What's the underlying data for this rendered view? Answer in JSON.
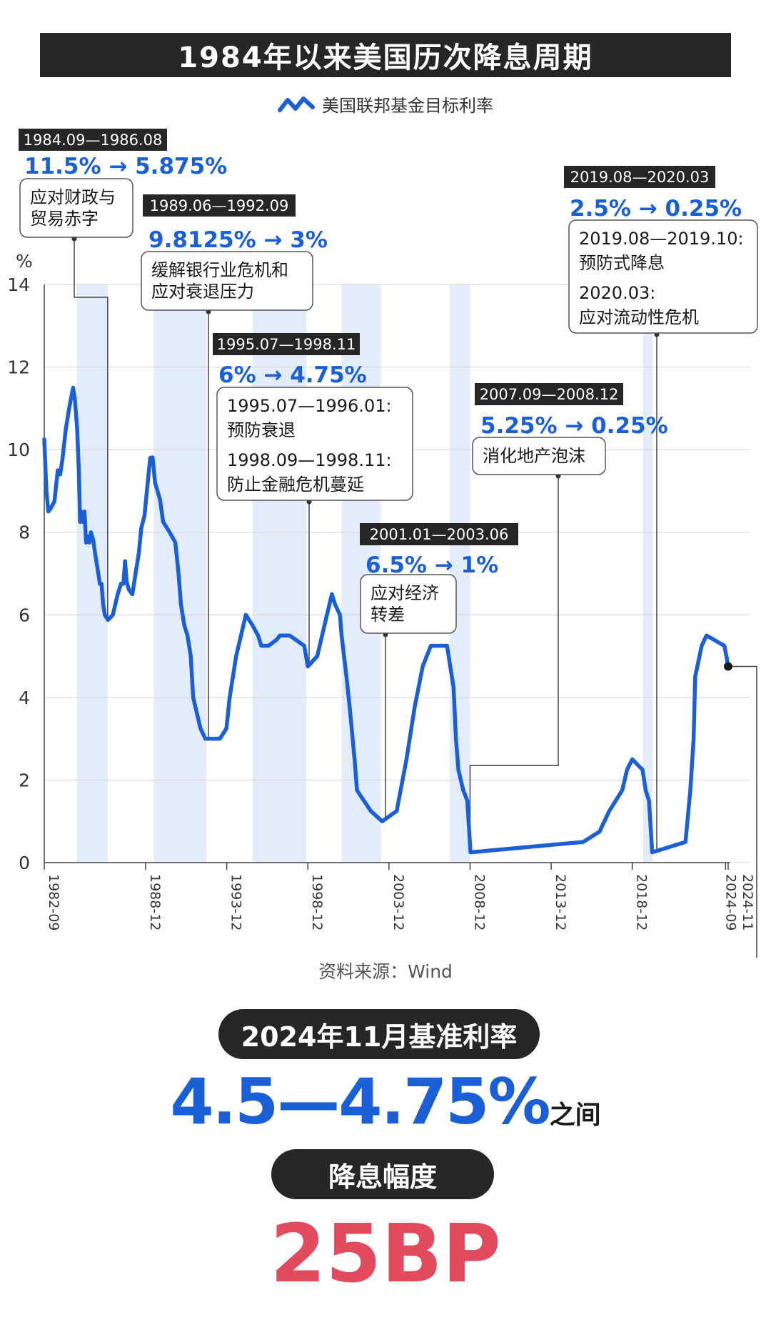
{
  "title": "1984年以来美国历次降息周期",
  "legend_label": "美国联邦基金目标利率",
  "colors": {
    "line": "#1b5fd6",
    "band": "#e3ecfa",
    "dark": "#262626",
    "accent_blue": "#1b5fd6",
    "accent_red": "#e14b5d"
  },
  "source": "资料来源：Wind",
  "bottom": {
    "rate_title": "2024年11月基准利率",
    "rate_value": "4.5—4.75%",
    "rate_suffix": "之间",
    "cut_title": "降息幅度",
    "cut_value": "25BP"
  },
  "chart_data": {
    "type": "line",
    "ylabel": "%",
    "ylim": [
      0,
      14
    ],
    "yticks": [
      0,
      2,
      4,
      6,
      8,
      10,
      12,
      14
    ],
    "xlim": [
      1982.67,
      2024.92
    ],
    "xticks": [
      {
        "label": "1982-09",
        "x": 1982.67
      },
      {
        "label": "1988-12",
        "x": 1988.92
      },
      {
        "label": "1993-12",
        "x": 1993.92
      },
      {
        "label": "1998-12",
        "x": 1998.92
      },
      {
        "label": "2003-12",
        "x": 2003.92
      },
      {
        "label": "2008-12",
        "x": 2008.92
      },
      {
        "label": "2013-12",
        "x": 2013.92
      },
      {
        "label": "2018-12",
        "x": 2018.92
      },
      {
        "label": "2024-09",
        "x": 2024.67
      },
      {
        "label": "2024-11",
        "x": 2024.83
      }
    ],
    "series": [
      {
        "name": "美国联邦基金目标利率",
        "points": [
          [
            1982.67,
            10.25
          ],
          [
            1982.8,
            9.0
          ],
          [
            1982.92,
            8.5
          ],
          [
            1983.1,
            8.6
          ],
          [
            1983.3,
            8.75
          ],
          [
            1983.5,
            9.5
          ],
          [
            1983.65,
            9.4
          ],
          [
            1983.8,
            9.8
          ],
          [
            1984.0,
            10.5
          ],
          [
            1984.2,
            11.0
          ],
          [
            1984.45,
            11.5
          ],
          [
            1984.55,
            11.25
          ],
          [
            1984.7,
            10.5
          ],
          [
            1984.8,
            9.5
          ],
          [
            1984.88,
            8.25
          ],
          [
            1984.95,
            8.5
          ],
          [
            1985.05,
            8.25
          ],
          [
            1985.15,
            8.5
          ],
          [
            1985.25,
            7.75
          ],
          [
            1985.35,
            7.9
          ],
          [
            1985.45,
            7.75
          ],
          [
            1985.55,
            8.0
          ],
          [
            1985.7,
            7.8
          ],
          [
            1985.8,
            7.5
          ],
          [
            1985.9,
            7.25
          ],
          [
            1986.0,
            7.0
          ],
          [
            1986.1,
            6.75
          ],
          [
            1986.2,
            6.75
          ],
          [
            1986.3,
            6.25
          ],
          [
            1986.4,
            6.0
          ],
          [
            1986.6,
            5.875
          ],
          [
            1986.9,
            6.0
          ],
          [
            1987.2,
            6.5
          ],
          [
            1987.4,
            6.75
          ],
          [
            1987.55,
            6.75
          ],
          [
            1987.65,
            7.3
          ],
          [
            1987.75,
            6.8
          ],
          [
            1987.9,
            6.6
          ],
          [
            1988.1,
            6.5
          ],
          [
            1988.3,
            7.0
          ],
          [
            1988.5,
            7.5
          ],
          [
            1988.65,
            8.1
          ],
          [
            1988.85,
            8.4
          ],
          [
            1989.0,
            9.0
          ],
          [
            1989.2,
            9.8
          ],
          [
            1989.35,
            9.8125
          ],
          [
            1989.5,
            9.2
          ],
          [
            1989.65,
            9.0
          ],
          [
            1989.8,
            8.8
          ],
          [
            1990.0,
            8.25
          ],
          [
            1990.4,
            8.0
          ],
          [
            1990.75,
            7.75
          ],
          [
            1990.95,
            7.0
          ],
          [
            1991.1,
            6.25
          ],
          [
            1991.3,
            5.75
          ],
          [
            1991.5,
            5.5
          ],
          [
            1991.7,
            5.0
          ],
          [
            1991.85,
            4.0
          ],
          [
            1992.0,
            3.75
          ],
          [
            1992.3,
            3.25
          ],
          [
            1992.6,
            3.0
          ],
          [
            1993.5,
            3.0
          ],
          [
            1993.9,
            3.25
          ],
          [
            1994.1,
            4.0
          ],
          [
            1994.5,
            5.0
          ],
          [
            1995.1,
            6.0
          ],
          [
            1995.5,
            5.75
          ],
          [
            1995.85,
            5.5
          ],
          [
            1996.05,
            5.25
          ],
          [
            1996.5,
            5.25
          ],
          [
            1997.0,
            5.4
          ],
          [
            1997.2,
            5.5
          ],
          [
            1997.8,
            5.5
          ],
          [
            1998.7,
            5.25
          ],
          [
            1998.92,
            4.75
          ],
          [
            1999.5,
            5.0
          ],
          [
            1999.8,
            5.5
          ],
          [
            2000.1,
            6.0
          ],
          [
            2000.4,
            6.5
          ],
          [
            2000.6,
            6.25
          ],
          [
            2000.9,
            6.0
          ],
          [
            2001.0,
            5.5
          ],
          [
            2001.15,
            5.0
          ],
          [
            2001.3,
            4.5
          ],
          [
            2001.5,
            3.75
          ],
          [
            2001.8,
            2.5
          ],
          [
            2001.95,
            1.75
          ],
          [
            2002.8,
            1.25
          ],
          [
            2003.5,
            1.0
          ],
          [
            2004.4,
            1.25
          ],
          [
            2005.0,
            2.5
          ],
          [
            2005.5,
            3.75
          ],
          [
            2006.0,
            4.75
          ],
          [
            2006.5,
            5.25
          ],
          [
            2007.5,
            5.25
          ],
          [
            2007.7,
            4.75
          ],
          [
            2007.9,
            4.25
          ],
          [
            2008.05,
            3.0
          ],
          [
            2008.2,
            2.25
          ],
          [
            2008.5,
            1.75
          ],
          [
            2008.75,
            1.5
          ],
          [
            2008.95,
            0.25
          ],
          [
            2015.9,
            0.5
          ],
          [
            2016.9,
            0.75
          ],
          [
            2017.2,
            1.0
          ],
          [
            2017.5,
            1.25
          ],
          [
            2017.9,
            1.5
          ],
          [
            2018.3,
            1.75
          ],
          [
            2018.6,
            2.25
          ],
          [
            2018.92,
            2.5
          ],
          [
            2019.55,
            2.25
          ],
          [
            2019.75,
            1.75
          ],
          [
            2019.95,
            1.5
          ],
          [
            2020.15,
            0.25
          ],
          [
            2022.2,
            0.5
          ],
          [
            2022.5,
            1.75
          ],
          [
            2022.7,
            3.0
          ],
          [
            2022.8,
            4.5
          ],
          [
            2023.2,
            5.25
          ],
          [
            2023.5,
            5.5
          ],
          [
            2024.6,
            5.25
          ],
          [
            2024.72,
            5.0
          ],
          [
            2024.83,
            4.75
          ]
        ]
      }
    ],
    "bands": [
      {
        "start": 1984.67,
        "end": 1986.58,
        "label": "1984.09—1986.08"
      },
      {
        "start": 1989.42,
        "end": 1992.67,
        "label": "1989.06—1992.09"
      },
      {
        "start": 1995.5,
        "end": 1998.83,
        "label": "1995.07—1998.11"
      },
      {
        "start": 2001.0,
        "end": 2003.42,
        "label": "2001.01—2003.06"
      },
      {
        "start": 2007.67,
        "end": 2008.92,
        "label": "2007.09—2008.12"
      },
      {
        "start": 2019.58,
        "end": 2020.17,
        "label": "2019.08—2020.03"
      }
    ],
    "annotations": [
      {
        "period": "1984.09—1986.08",
        "change": "11.5% → 5.875%",
        "notes": [
          "应对财政与",
          "贸易赤字"
        ]
      },
      {
        "period": "1989.06—1992.09",
        "change": "9.8125% → 3%",
        "notes": [
          "缓解银行业危机和",
          "应对衰退压力"
        ]
      },
      {
        "period": "1995.07—1998.11",
        "change": "6% → 4.75%",
        "notes": [
          "1995.07—1996.01:",
          "预防衰退",
          "1998.09—1998.11:",
          "防止金融危机蔓延"
        ]
      },
      {
        "period": "2001.01—2003.06",
        "change": "6.5% → 1%",
        "notes": [
          "应对经济",
          "转差"
        ]
      },
      {
        "period": "2007.09—2008.12",
        "change": "5.25% → 0.25%",
        "notes": [
          "消化地产泡沫"
        ]
      },
      {
        "period": "2019.08—2020.03",
        "change": "2.5% → 0.25%",
        "notes": [
          "2019.08—2019.10:",
          "预防式降息",
          "2020.03:",
          "应对流动性危机"
        ]
      }
    ]
  }
}
